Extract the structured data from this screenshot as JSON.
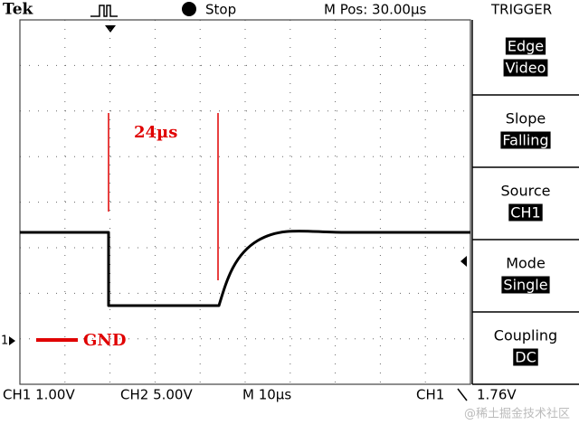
{
  "header": {
    "brand": "Tek",
    "state": "Stop",
    "position": "M Pos: 30.00µs",
    "menu_title": "TRIGGER"
  },
  "menu": [
    {
      "title": "Edge",
      "value": "Video"
    },
    {
      "title": "Slope",
      "value": "Falling"
    },
    {
      "title": "Source",
      "value": "CH1"
    },
    {
      "title": "Mode",
      "value": "Single"
    },
    {
      "title": "Coupling",
      "value": "DC"
    }
  ],
  "annotations": {
    "width": "24µs",
    "ground": "GND",
    "channel_marker": "1"
  },
  "status": {
    "ch1_scale": "CH1  1.00V",
    "ch2_scale": "CH2  5.00V",
    "timebase": "M  10µs",
    "trigger_source": "CH1",
    "trigger_level": "1.76V"
  },
  "watermark": "@稀土掘金技术社区"
}
